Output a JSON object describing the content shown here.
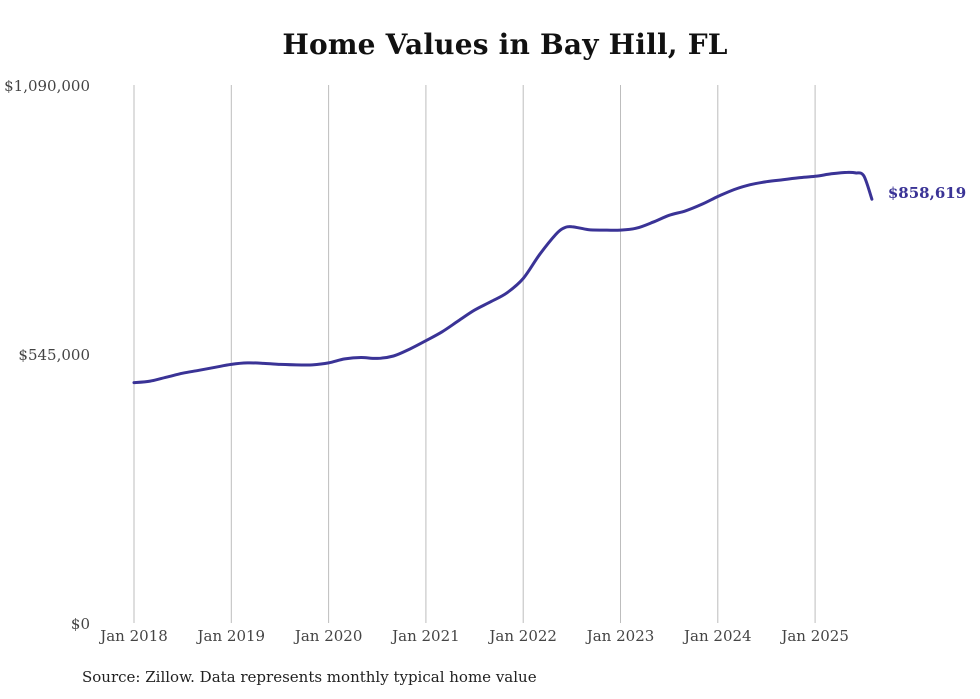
{
  "chart_data": {
    "type": "line",
    "title": "Home Values in Bay Hill, FL",
    "xlabel": "",
    "ylabel": "",
    "ylim": [
      0,
      1090000
    ],
    "yticks": [
      "$0",
      "$545,000",
      "$1,090,000"
    ],
    "ytick_values": [
      0,
      545000,
      1090000
    ],
    "xticks": [
      "Jan 2018",
      "Jan 2019",
      "Jan 2020",
      "Jan 2021",
      "Jan 2022",
      "Jan 2023",
      "Jan 2024",
      "Jan 2025"
    ],
    "xtick_values": [
      "2018-01",
      "2019-01",
      "2020-01",
      "2021-01",
      "2022-01",
      "2023-01",
      "2024-01",
      "2025-01"
    ],
    "grid": "vertical",
    "line_color": "#3a3396",
    "end_label": "$858,619",
    "series": [
      {
        "x": [
          "2018-01",
          "2018-03",
          "2018-05",
          "2018-07",
          "2018-09",
          "2018-11",
          "2019-01",
          "2019-03",
          "2019-05",
          "2019-07",
          "2019-09",
          "2019-11",
          "2020-01",
          "2020-03",
          "2020-05",
          "2020-07",
          "2020-09",
          "2020-11",
          "2021-01",
          "2021-03",
          "2021-05",
          "2021-07",
          "2021-09",
          "2021-11",
          "2022-01",
          "2022-03",
          "2022-05",
          "2022-06",
          "2022-07",
          "2022-09",
          "2022-11",
          "2023-01",
          "2023-03",
          "2023-05",
          "2023-07",
          "2023-09",
          "2023-11",
          "2024-01",
          "2024-03",
          "2024-05",
          "2024-07",
          "2024-09",
          "2024-11",
          "2025-01",
          "2025-03",
          "2025-05",
          "2025-06",
          "2025-07",
          "2025-08"
        ],
        "values": [
          487000,
          490000,
          498000,
          506000,
          512000,
          518000,
          524000,
          527000,
          526000,
          524000,
          523000,
          523000,
          527000,
          535000,
          538000,
          536000,
          541000,
          555000,
          572000,
          590000,
          612000,
          634000,
          651000,
          669000,
          698000,
          746000,
          787000,
          800000,
          803000,
          797000,
          796000,
          796000,
          800000,
          812000,
          826000,
          835000,
          848000,
          864000,
          878000,
          888000,
          894000,
          898000,
          902000,
          905000,
          910000,
          913000,
          912000,
          906000,
          858619
        ]
      }
    ]
  },
  "source": "Source: Zillow. Data represents monthly typical home value"
}
